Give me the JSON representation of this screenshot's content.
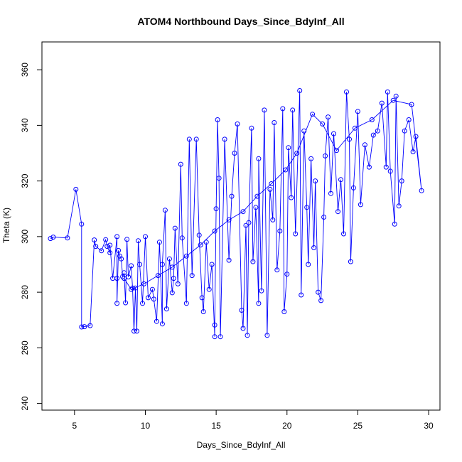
{
  "chart_data": {
    "type": "scatter",
    "title": "ATOM4 Northbound Days_Since_BdyInf_All",
    "xlabel": "Days_Since_BdyInf_All",
    "ylabel": "Theta (K)",
    "xlim": [
      2.7,
      30.8
    ],
    "ylim": [
      237.6,
      370.0
    ],
    "xticks": [
      5,
      10,
      15,
      20,
      25,
      30
    ],
    "yticks": [
      240,
      260,
      280,
      300,
      320,
      340,
      360
    ],
    "grid": false,
    "legend": "none",
    "series_color": "#0000ff",
    "marker": "open-circle",
    "connect_points": true,
    "series": [
      {
        "points": [
          [
            3.3,
            299.3
          ],
          [
            3.5,
            299.8
          ],
          [
            4.5,
            299.5
          ],
          [
            5.1,
            317.0
          ],
          [
            5.5,
            304.5
          ],
          [
            5.5,
            267.5
          ],
          [
            5.7,
            267.6
          ],
          [
            6.1,
            268.0
          ],
          [
            6.4,
            298.8
          ],
          [
            6.5,
            296.5
          ],
          [
            6.9,
            294.9
          ],
          [
            7.2,
            298.9
          ],
          [
            7.3,
            296.5
          ],
          [
            7.5,
            294.2
          ],
          [
            7.5,
            296.9
          ],
          [
            7.7,
            285.0
          ],
          [
            8.0,
            300.0
          ],
          [
            8.0,
            285.0
          ],
          [
            8.0,
            276.0
          ],
          [
            8.1,
            295.0
          ],
          [
            8.2,
            293.0
          ],
          [
            8.3,
            292.0
          ],
          [
            8.4,
            285.6
          ],
          [
            8.5,
            287.0
          ],
          [
            8.6,
            276.2
          ],
          [
            8.7,
            299.0
          ],
          [
            8.8,
            285.5
          ],
          [
            9.0,
            289.5
          ],
          [
            9.1,
            281.5
          ],
          [
            9.2,
            266.0
          ],
          [
            9.3,
            281.5
          ],
          [
            9.4,
            266.0
          ],
          [
            9.5,
            298.5
          ],
          [
            9.6,
            290.0
          ],
          [
            9.8,
            276.0
          ],
          [
            10.0,
            300.0
          ],
          [
            10.2,
            278.0
          ],
          [
            10.5,
            281.0
          ],
          [
            10.6,
            277.5
          ],
          [
            10.8,
            269.5
          ],
          [
            11.0,
            298.0
          ],
          [
            11.2,
            268.6
          ],
          [
            11.2,
            290.0
          ],
          [
            11.4,
            309.5
          ],
          [
            11.5,
            274.0
          ],
          [
            11.7,
            292.0
          ],
          [
            11.9,
            279.8
          ],
          [
            12.0,
            285.0
          ],
          [
            12.1,
            303.0
          ],
          [
            12.3,
            283.0
          ],
          [
            12.5,
            326.0
          ],
          [
            12.6,
            299.5
          ],
          [
            12.9,
            276.0
          ],
          [
            13.1,
            335.0
          ],
          [
            13.3,
            286.0
          ],
          [
            13.6,
            335.0
          ],
          [
            13.8,
            300.5
          ],
          [
            14.0,
            278.0
          ],
          [
            14.1,
            273.0
          ],
          [
            14.3,
            298.0
          ],
          [
            14.5,
            281.0
          ],
          [
            14.7,
            290.0
          ],
          [
            14.9,
            264.0
          ],
          [
            14.9,
            268.2
          ],
          [
            15.0,
            310.0
          ],
          [
            15.1,
            342.0
          ],
          [
            15.2,
            321.0
          ],
          [
            15.3,
            264.0
          ],
          [
            15.6,
            335.0
          ],
          [
            15.9,
            291.5
          ],
          [
            16.1,
            314.5
          ],
          [
            16.3,
            330.0
          ],
          [
            16.5,
            340.5
          ],
          [
            16.8,
            273.5
          ],
          [
            16.9,
            267.0
          ],
          [
            17.1,
            304.0
          ],
          [
            17.2,
            264.5
          ],
          [
            17.3,
            305.0
          ],
          [
            17.5,
            339.0
          ],
          [
            17.6,
            291.0
          ],
          [
            17.8,
            310.5
          ],
          [
            18.0,
            276.0
          ],
          [
            18.0,
            328.0
          ],
          [
            18.2,
            280.5
          ],
          [
            18.4,
            345.5
          ],
          [
            18.6,
            264.5
          ],
          [
            18.8,
            317.0
          ],
          [
            19.0,
            306.0
          ],
          [
            19.1,
            341.0
          ],
          [
            19.3,
            288.0
          ],
          [
            19.5,
            302.0
          ],
          [
            19.7,
            346.0
          ],
          [
            19.8,
            273.0
          ],
          [
            20.0,
            286.5
          ],
          [
            20.1,
            332.0
          ],
          [
            20.3,
            314.0
          ],
          [
            20.4,
            345.5
          ],
          [
            20.6,
            301.0
          ],
          [
            20.9,
            352.5
          ],
          [
            21.0,
            279.0
          ],
          [
            21.2,
            338.0
          ],
          [
            21.4,
            310.5
          ],
          [
            21.5,
            290.0
          ],
          [
            21.7,
            328.0
          ],
          [
            21.9,
            296.0
          ],
          [
            22.0,
            320.0
          ],
          [
            22.2,
            280.0
          ],
          [
            22.4,
            277.0
          ],
          [
            22.6,
            307.0
          ],
          [
            22.7,
            329.0
          ],
          [
            22.9,
            343.0
          ],
          [
            23.1,
            315.5
          ],
          [
            23.3,
            337.0
          ],
          [
            23.6,
            309.0
          ],
          [
            23.8,
            320.5
          ],
          [
            24.0,
            301.0
          ],
          [
            24.2,
            352.0
          ],
          [
            24.4,
            335.0
          ],
          [
            24.5,
            291.0
          ],
          [
            24.7,
            317.5
          ],
          [
            25.0,
            345.0
          ],
          [
            25.2,
            311.5
          ],
          [
            25.5,
            333.0
          ],
          [
            25.8,
            325.0
          ],
          [
            26.1,
            336.5
          ],
          [
            26.4,
            338.0
          ],
          [
            26.7,
            348.0
          ],
          [
            27.0,
            325.0
          ],
          [
            27.1,
            352.0
          ],
          [
            27.3,
            323.5
          ],
          [
            27.6,
            304.5
          ],
          [
            27.7,
            350.5
          ],
          [
            27.9,
            311.0
          ],
          [
            28.1,
            320.0
          ],
          [
            28.3,
            338.0
          ],
          [
            28.6,
            342.0
          ],
          [
            28.9,
            330.5
          ],
          [
            29.1,
            336.0
          ],
          [
            29.5,
            316.5
          ],
          [
            28.8,
            347.5
          ],
          [
            27.5,
            349.0
          ],
          [
            26.0,
            342.0
          ],
          [
            24.8,
            339.0
          ],
          [
            23.5,
            331.0
          ],
          [
            22.5,
            340.5
          ],
          [
            21.8,
            344.0
          ],
          [
            20.7,
            330.0
          ],
          [
            19.9,
            324.0
          ],
          [
            18.9,
            319.0
          ],
          [
            17.9,
            314.5
          ],
          [
            16.9,
            309.0
          ],
          [
            15.9,
            306.0
          ],
          [
            14.9,
            302.0
          ],
          [
            13.9,
            297.0
          ],
          [
            12.9,
            293.0
          ],
          [
            11.9,
            289.0
          ],
          [
            10.9,
            286.0
          ],
          [
            9.9,
            283.0
          ],
          [
            9.0,
            281.0
          ],
          [
            8.5,
            285.0
          ]
        ]
      }
    ]
  }
}
